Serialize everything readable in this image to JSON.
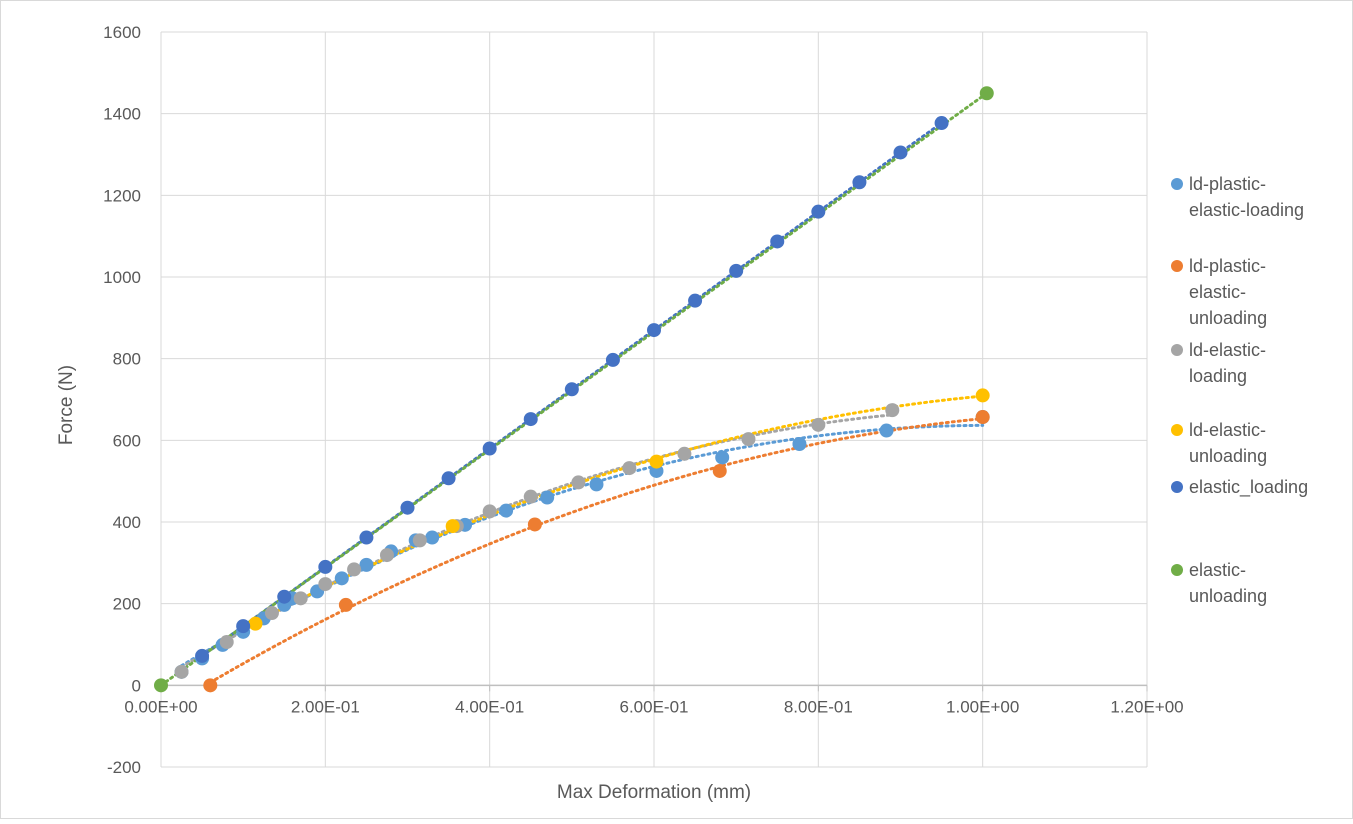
{
  "chart_data": {
    "type": "scatter",
    "title": "",
    "xlabel": "Max Deformation (mm)",
    "ylabel": "Force (N)",
    "xlim": [
      0,
      1.2
    ],
    "ylim": [
      -200,
      1600
    ],
    "x_ticks": [
      0,
      0.2,
      0.4,
      0.6,
      0.8,
      1.0,
      1.2
    ],
    "x_tick_labels": [
      "0.00E+00",
      "2.00E-01",
      "4.00E-01",
      "6.00E-01",
      "8.00E-01",
      "1.00E+00",
      "1.20E+00"
    ],
    "y_ticks": [
      -200,
      0,
      200,
      400,
      600,
      800,
      1000,
      1200,
      1400,
      1600
    ],
    "y_tick_labels": [
      "-200",
      "0",
      "200",
      "400",
      "600",
      "800",
      "1000",
      "1200",
      "1400",
      "1600"
    ],
    "grid": true,
    "legend_position": "right",
    "series": [
      {
        "name": "ld-plastic-elastic-loading",
        "legend_lines": [
          "ld-plastic-",
          "elastic-loading"
        ],
        "color": "#5B9BD5",
        "x": [
          0.025,
          0.05,
          0.075,
          0.1,
          0.125,
          0.15,
          0.16,
          0.19,
          0.22,
          0.25,
          0.28,
          0.31,
          0.33,
          0.37,
          0.42,
          0.47,
          0.53,
          0.603,
          0.683,
          0.777,
          0.883,
          1.0
        ],
        "y": [
          33,
          66,
          99,
          131,
          164,
          197,
          213,
          230,
          262,
          295,
          328,
          355,
          362,
          393,
          428,
          460,
          492,
          525,
          558,
          591,
          624,
          657
        ]
      },
      {
        "name": "ld-plastic-elastic-unloading",
        "legend_lines": [
          "ld-plastic-",
          "elastic-",
          "unloading"
        ],
        "color": "#ED7D31",
        "x": [
          0.06,
          0.225,
          0.455,
          0.68,
          1.0
        ],
        "y": [
          0,
          197,
          394,
          525,
          657
        ]
      },
      {
        "name": "ld-elastic-loading",
        "legend_lines": [
          "ld-elastic-",
          "loading"
        ],
        "color": "#A5A5A5",
        "x": [
          0.025,
          0.08,
          0.135,
          0.17,
          0.2,
          0.235,
          0.275,
          0.315,
          0.36,
          0.4,
          0.45,
          0.508,
          0.57,
          0.637,
          0.715,
          0.8,
          0.89
        ],
        "y": [
          33,
          106,
          177,
          213,
          248,
          284,
          319,
          355,
          390,
          426,
          462,
          497,
          532,
          567,
          603,
          638,
          674
        ]
      },
      {
        "name": "ld-elastic-unloading",
        "legend_lines": [
          "ld-elastic-",
          "unloading"
        ],
        "color": "#FFC000",
        "x": [
          0.115,
          0.355,
          0.603,
          1.0
        ],
        "y": [
          151,
          390,
          548,
          710
        ]
      },
      {
        "name": "elastic_loading",
        "legend_lines": [
          "elastic_loading"
        ],
        "color": "#4472C4",
        "x": [
          0.05,
          0.1,
          0.15,
          0.2,
          0.25,
          0.3,
          0.35,
          0.4,
          0.45,
          0.5,
          0.55,
          0.6,
          0.65,
          0.7,
          0.75,
          0.8,
          0.85,
          0.9,
          0.95
        ],
        "y": [
          72,
          145,
          217,
          290,
          362,
          435,
          507,
          580,
          652,
          725,
          797,
          870,
          942,
          1015,
          1087,
          1160,
          1232,
          1305,
          1377
        ]
      },
      {
        "name": "elastic-unloading",
        "legend_lines": [
          "elastic-",
          "unloading"
        ],
        "color": "#70AD47",
        "x": [
          0.0,
          1.005
        ],
        "y": [
          0,
          1450
        ]
      }
    ]
  }
}
